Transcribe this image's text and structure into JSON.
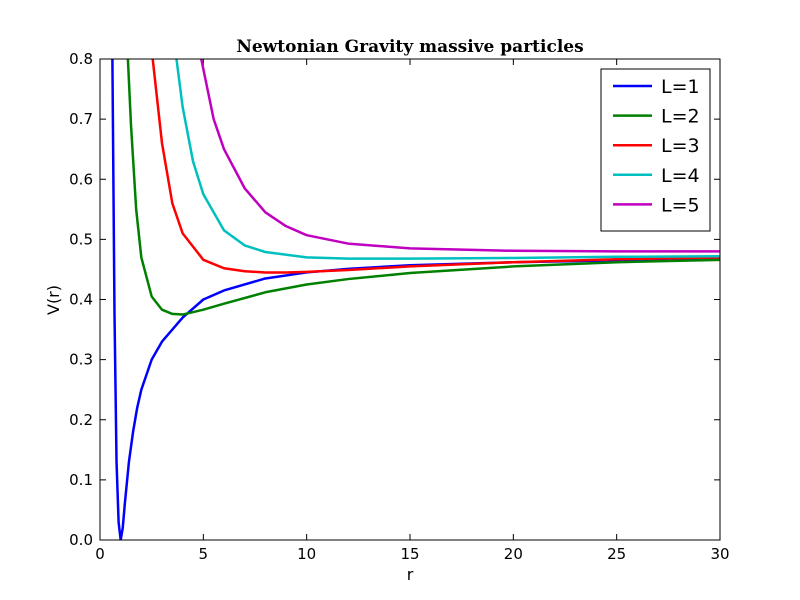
{
  "chart_data": {
    "type": "line",
    "title": "Newtonian Gravity massive particles",
    "xlabel": "r",
    "ylabel": "V(r)",
    "xlim": [
      0,
      30
    ],
    "ylim": [
      0.0,
      0.8
    ],
    "x_ticks": [
      0,
      5,
      10,
      15,
      20,
      25,
      30
    ],
    "x_tick_labels": [
      "0",
      "5",
      "10",
      "15",
      "20",
      "25",
      "30"
    ],
    "y_ticks": [
      0.0,
      0.1,
      0.2,
      0.3,
      0.4,
      0.5,
      0.6,
      0.7,
      0.8
    ],
    "y_tick_labels": [
      "0.0",
      "0.1",
      "0.2",
      "0.3",
      "0.4",
      "0.5",
      "0.6",
      "0.7",
      "0.8"
    ],
    "grid": false,
    "legend_position": "top-right",
    "series": [
      {
        "name": "L=1",
        "color": "#0000ff",
        "x": [
          0.6,
          0.7,
          0.8,
          0.9,
          1.0,
          1.1,
          1.2,
          1.4,
          1.6,
          1.8,
          2.0,
          2.5,
          3.0,
          4.0,
          5.0,
          6.0,
          8.0,
          10.0,
          12.0,
          15.0,
          20.0,
          25.0,
          30.0
        ],
        "values": [
          0.8,
          0.38,
          0.13,
          0.03,
          0.0,
          0.02,
          0.06,
          0.13,
          0.18,
          0.22,
          0.25,
          0.3,
          0.33,
          0.37,
          0.4,
          0.415,
          0.435,
          0.445,
          0.451,
          0.457,
          0.462,
          0.465,
          0.467
        ]
      },
      {
        "name": "L=2",
        "color": "#008000",
        "x": [
          1.35,
          1.5,
          1.75,
          2.0,
          2.5,
          3.0,
          3.5,
          4.0,
          5.0,
          6.0,
          8.0,
          10.0,
          12.0,
          15.0,
          20.0,
          25.0,
          30.0
        ],
        "values": [
          0.8,
          0.69,
          0.55,
          0.47,
          0.405,
          0.383,
          0.376,
          0.375,
          0.383,
          0.393,
          0.412,
          0.425,
          0.434,
          0.444,
          0.455,
          0.462,
          0.466
        ]
      },
      {
        "name": "L=3",
        "color": "#ff0000",
        "x": [
          2.55,
          3.0,
          3.5,
          4.0,
          5.0,
          6.0,
          7.0,
          8.0,
          9.0,
          10.0,
          12.0,
          15.0,
          20.0,
          25.0,
          30.0
        ],
        "values": [
          0.8,
          0.66,
          0.56,
          0.51,
          0.466,
          0.452,
          0.447,
          0.445,
          0.445,
          0.446,
          0.449,
          0.455,
          0.462,
          0.467,
          0.47
        ]
      },
      {
        "name": "L=4",
        "color": "#00bfbf",
        "x": [
          3.7,
          4.0,
          4.5,
          5.0,
          6.0,
          7.0,
          8.0,
          10.0,
          12.0,
          15.0,
          20.0,
          25.0,
          30.0
        ],
        "values": [
          0.8,
          0.72,
          0.63,
          0.575,
          0.515,
          0.49,
          0.479,
          0.47,
          0.468,
          0.468,
          0.469,
          0.471,
          0.472
        ]
      },
      {
        "name": "L=5",
        "color": "#bf00bf",
        "x": [
          4.9,
          5.5,
          6.0,
          7.0,
          8.0,
          9.0,
          10.0,
          12.0,
          15.0,
          20.0,
          25.0,
          30.0
        ],
        "values": [
          0.8,
          0.7,
          0.65,
          0.585,
          0.545,
          0.522,
          0.507,
          0.493,
          0.485,
          0.481,
          0.48,
          0.48
        ]
      }
    ]
  }
}
